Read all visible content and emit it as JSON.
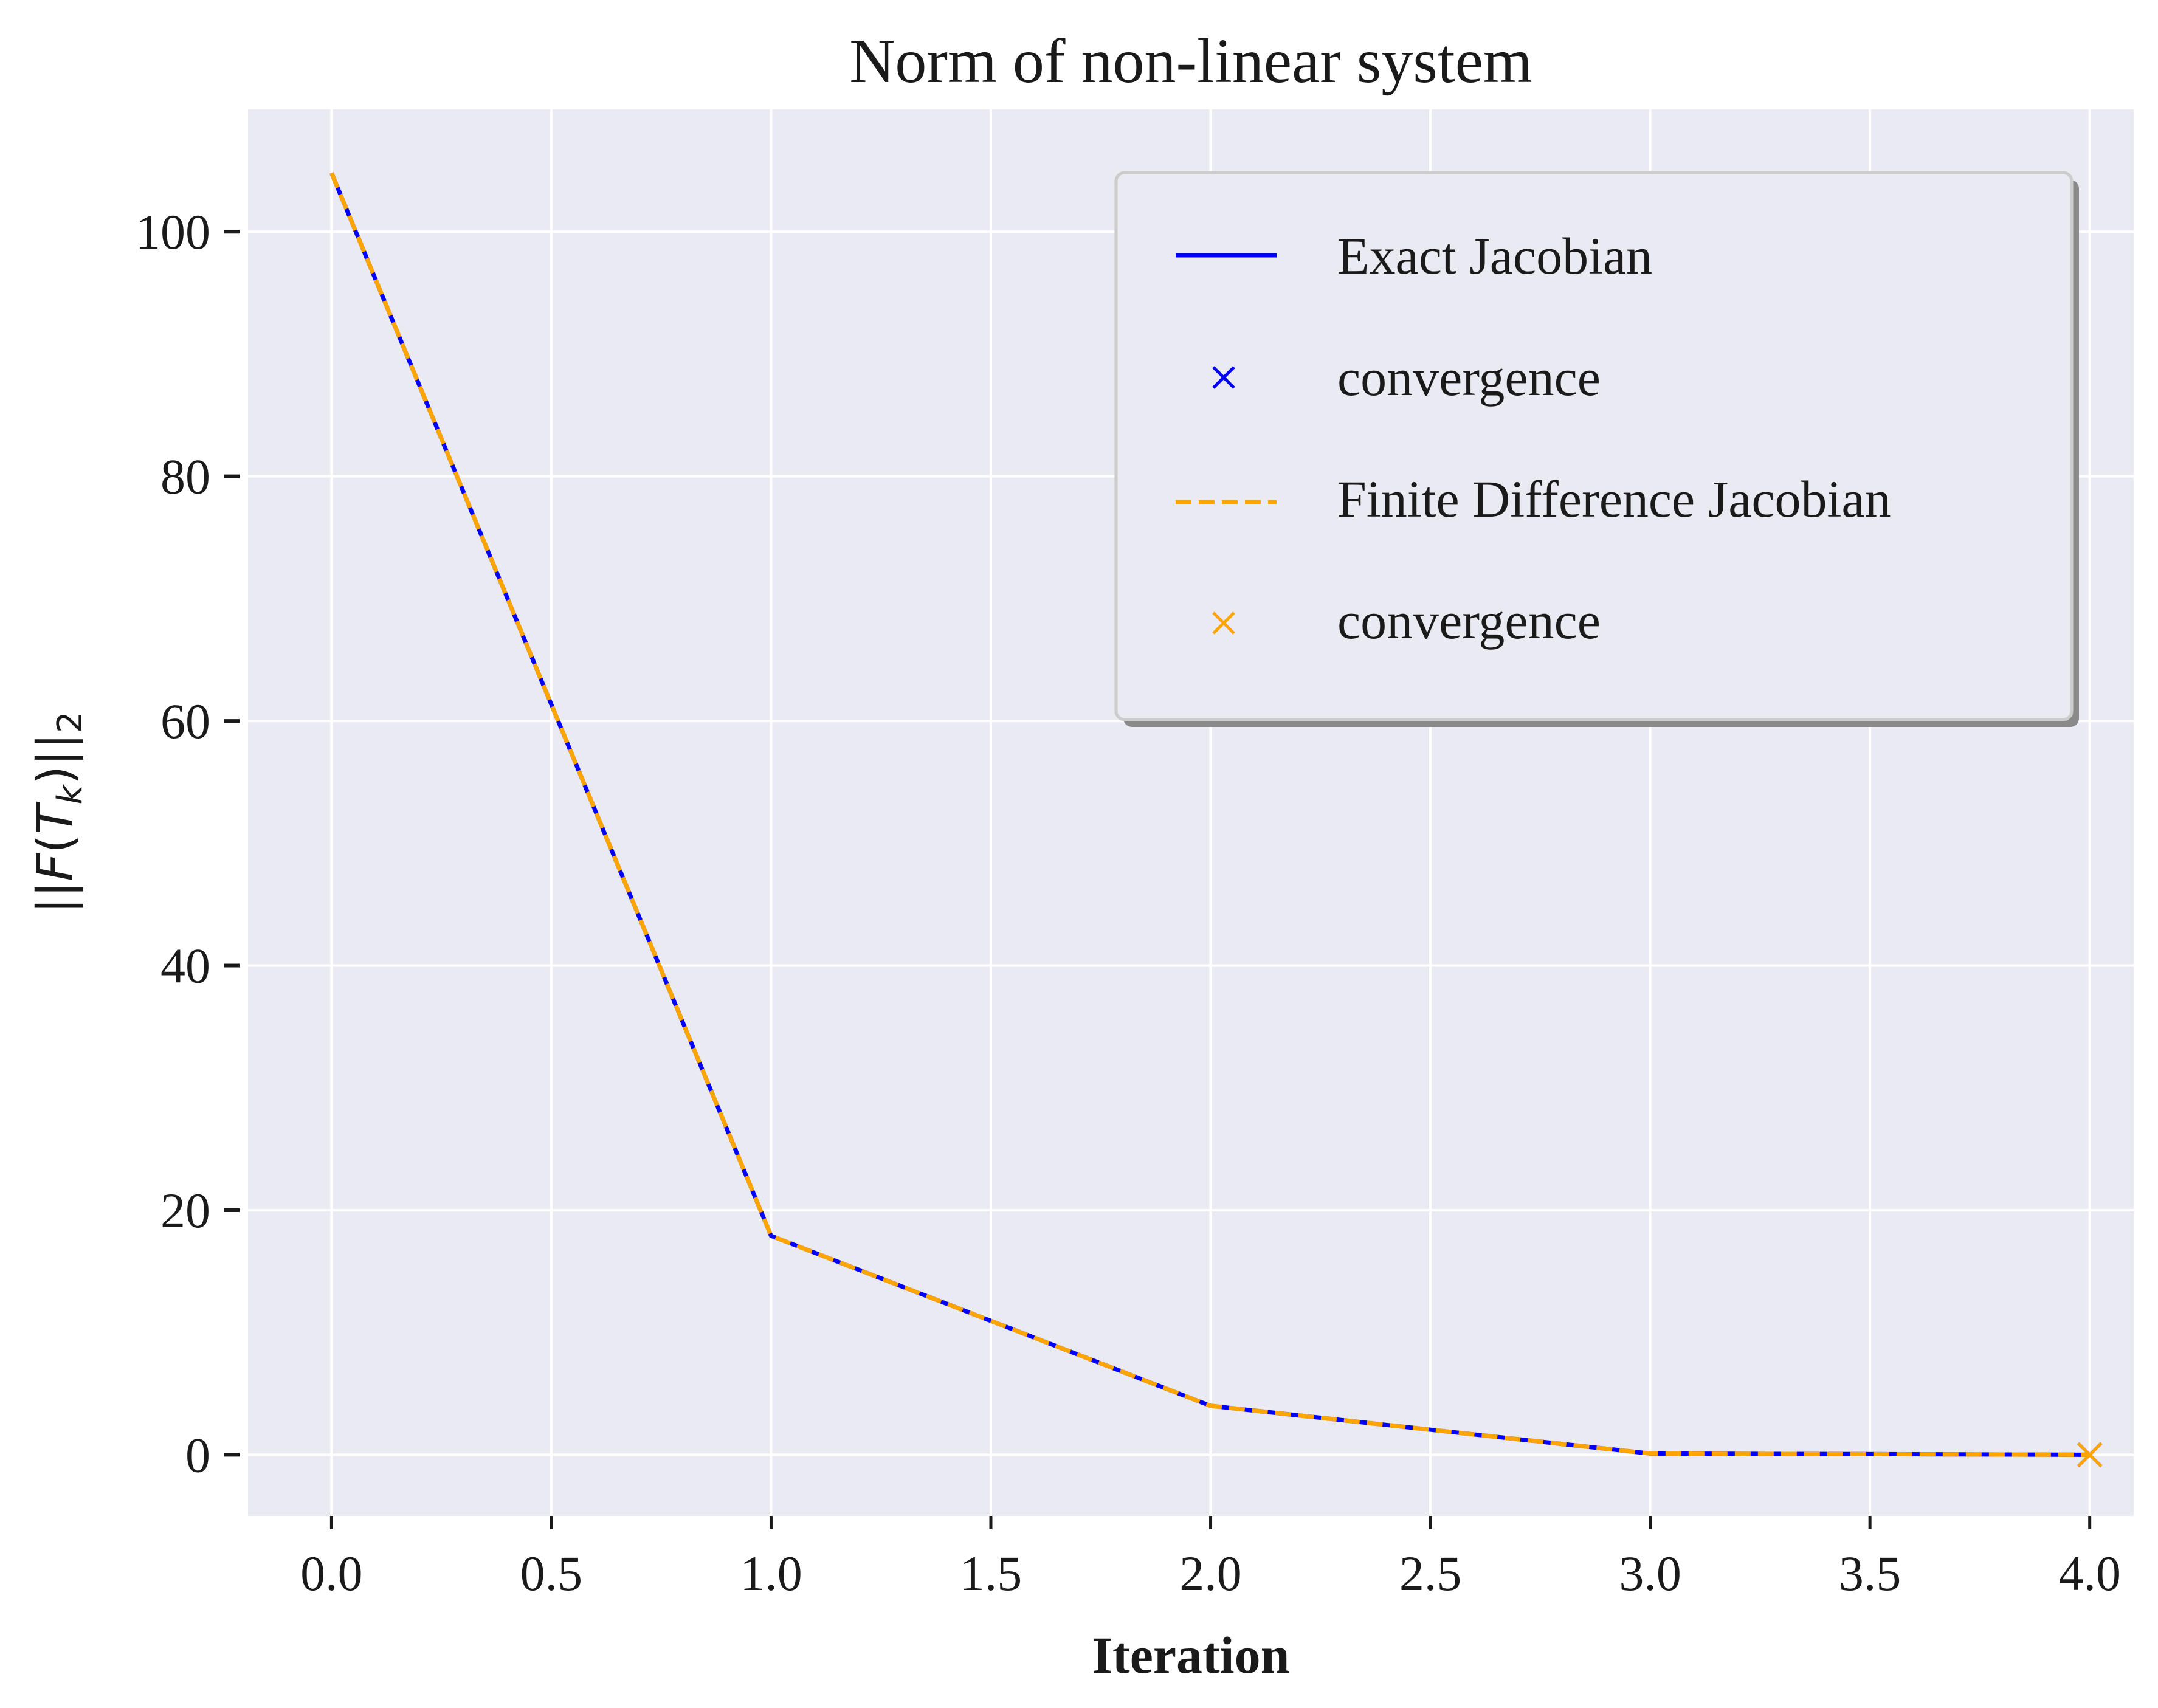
{
  "chart_data": {
    "type": "line",
    "title": "Norm of non-linear system",
    "xlabel": "Iteration",
    "ylabel": "||F(T_k)||_2",
    "xlim": [
      -0.19,
      4.1
    ],
    "ylim": [
      -5,
      110
    ],
    "xticks": [
      "0.0",
      "0.5",
      "1.0",
      "1.5",
      "2.0",
      "2.5",
      "3.0",
      "3.5",
      "4.0"
    ],
    "yticks": [
      "0",
      "20",
      "40",
      "60",
      "80",
      "100"
    ],
    "grid": true,
    "legend_position": "top-right",
    "series": [
      {
        "name": "Exact Jacobian",
        "style": "solid",
        "color": "#0000ff",
        "x": [
          0,
          1,
          2,
          3,
          4
        ],
        "y": [
          104.8,
          17.9,
          4.0,
          0.1,
          0.0
        ]
      },
      {
        "name": "convergence",
        "style": "x-marker",
        "color": "#0000ff",
        "x": [
          4
        ],
        "y": [
          0.0
        ]
      },
      {
        "name": "Finite Difference Jacobian",
        "style": "dashed",
        "color": "#ffa500",
        "x": [
          0,
          1,
          2,
          3,
          4
        ],
        "y": [
          104.8,
          17.9,
          4.0,
          0.1,
          0.0
        ]
      },
      {
        "name": "convergence",
        "style": "x-marker",
        "color": "#ffa500",
        "x": [
          4
        ],
        "y": [
          0.0
        ]
      }
    ]
  },
  "colors": {
    "plot_background": "#eaeaf2",
    "grid": "#ffffff",
    "exact": "#0000ff",
    "finite": "#ffa500"
  }
}
